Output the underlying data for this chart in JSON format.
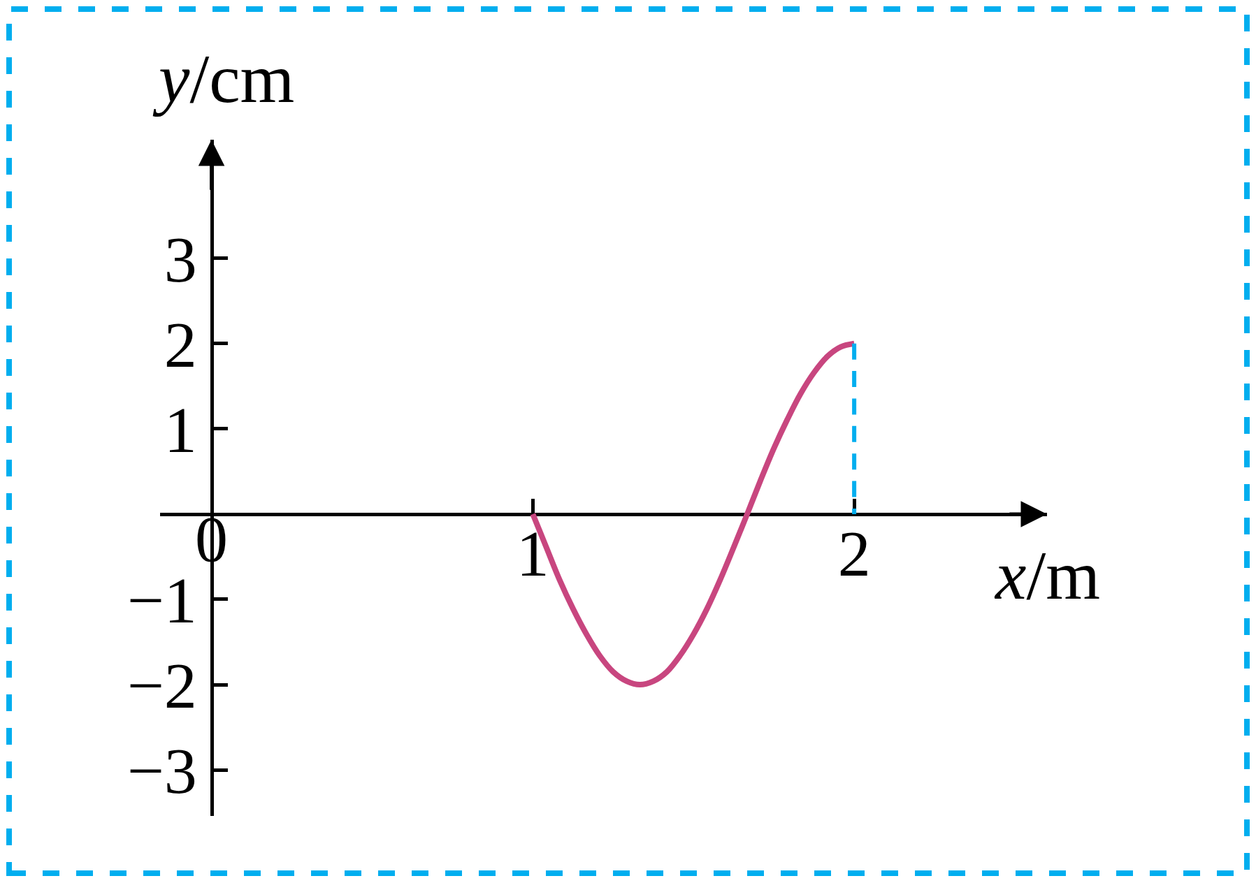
{
  "chart_data": {
    "type": "line",
    "xlabel": "x/m",
    "ylabel": "y/cm",
    "xlim": [
      -0.16,
      2.6
    ],
    "ylim": [
      -3.54,
      4.39
    ],
    "xticks": [
      0,
      1,
      2
    ],
    "yticks": [
      -3,
      -2,
      -1,
      1,
      2,
      3
    ],
    "series": [
      {
        "color": "#c8467f",
        "x": [
          1,
          1.042,
          1.083,
          1.125,
          1.167,
          1.208,
          1.25,
          1.292,
          1.333,
          1.375,
          1.417,
          1.458,
          1.5,
          1.542,
          1.583,
          1.625,
          1.667,
          1.708,
          1.75,
          1.792,
          1.833,
          1.875,
          1.917,
          1.958,
          2
        ],
        "values": [
          0,
          -0.39,
          -0.77,
          -1.11,
          -1.41,
          -1.66,
          -1.85,
          -1.96,
          -2,
          -1.96,
          -1.85,
          -1.66,
          -1.41,
          -1.11,
          -0.77,
          -0.39,
          0,
          0.39,
          0.77,
          1.11,
          1.41,
          1.66,
          1.85,
          1.96,
          2
        ]
      },
      {
        "color": "#00aeef",
        "line_style": "dashed",
        "x": [
          2,
          2
        ],
        "values": [
          0,
          2
        ]
      }
    ]
  }
}
